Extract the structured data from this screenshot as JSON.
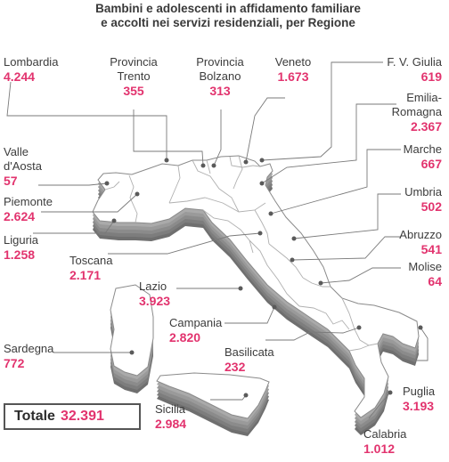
{
  "title_line1": "Bambini e adolescenti in affidamento familiare",
  "title_line2": "e accolti nei servizi residenziali, per Regione",
  "total": {
    "label": "Totale",
    "value": "32.391"
  },
  "regions": [
    {
      "key": "lombardia",
      "name": [
        "Lombardia"
      ],
      "value": "4.244"
    },
    {
      "key": "trento",
      "name": [
        "Provincia",
        "Trento"
      ],
      "value": "355"
    },
    {
      "key": "bolzano",
      "name": [
        "Provincia",
        "Bolzano"
      ],
      "value": "313"
    },
    {
      "key": "veneto",
      "name": [
        "Veneto"
      ],
      "value": "1.673"
    },
    {
      "key": "fvg",
      "name": [
        "F. V. Giulia"
      ],
      "value": "619"
    },
    {
      "key": "emilia",
      "name": [
        "Emilia-",
        "Romagna"
      ],
      "value": "2.367"
    },
    {
      "key": "aosta",
      "name": [
        "Valle",
        "d'Aosta"
      ],
      "value": "57"
    },
    {
      "key": "marche",
      "name": [
        "Marche"
      ],
      "value": "667"
    },
    {
      "key": "piemonte",
      "name": [
        "Piemonte"
      ],
      "value": "2.624"
    },
    {
      "key": "umbria",
      "name": [
        "Umbria"
      ],
      "value": "502"
    },
    {
      "key": "liguria",
      "name": [
        "Liguria"
      ],
      "value": "1.258"
    },
    {
      "key": "abruzzo",
      "name": [
        "Abruzzo"
      ],
      "value": "541"
    },
    {
      "key": "toscana",
      "name": [
        "Toscana"
      ],
      "value": "2.171"
    },
    {
      "key": "molise",
      "name": [
        "Molise"
      ],
      "value": "64"
    },
    {
      "key": "lazio",
      "name": [
        "Lazio"
      ],
      "value": "3.923"
    },
    {
      "key": "campania",
      "name": [
        "Campania"
      ],
      "value": "2.820"
    },
    {
      "key": "sardegna",
      "name": [
        "Sardegna"
      ],
      "value": "772"
    },
    {
      "key": "basilicata",
      "name": [
        "Basilicata"
      ],
      "value": "232"
    },
    {
      "key": "puglia",
      "name": [
        "Puglia"
      ],
      "value": "3.193"
    },
    {
      "key": "sicilia",
      "name": [
        "Sicilia"
      ],
      "value": "2.984"
    },
    {
      "key": "calabria",
      "name": [
        "Calabria"
      ],
      "value": "1.012"
    }
  ],
  "colors": {
    "land": "#ffffff",
    "extrude": "#8a8a8a",
    "border": "#9a9a9a",
    "accent": "#e2336e",
    "text": "#3c3c3c"
  }
}
